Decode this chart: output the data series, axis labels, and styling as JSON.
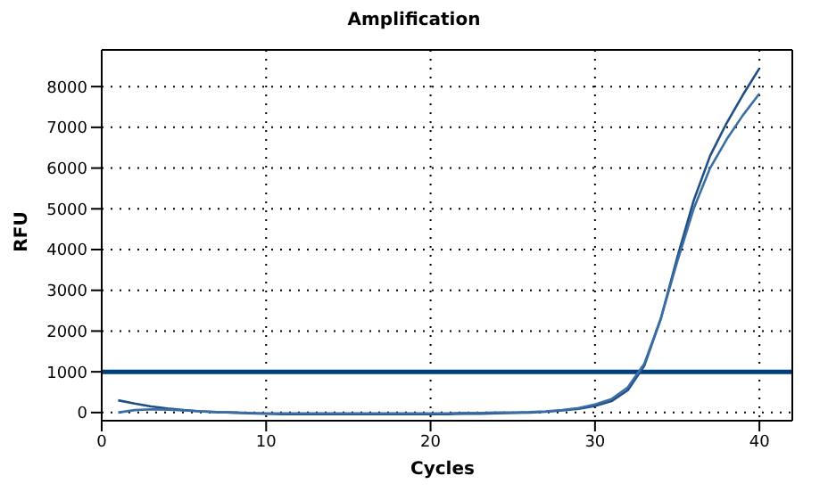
{
  "chart_data": {
    "type": "line",
    "title": "Amplification",
    "xlabel": "Cycles",
    "ylabel": "RFU",
    "x": [
      1,
      2,
      3,
      4,
      5,
      6,
      7,
      8,
      9,
      10,
      11,
      12,
      13,
      14,
      15,
      16,
      17,
      18,
      19,
      20,
      21,
      22,
      23,
      24,
      25,
      26,
      27,
      28,
      29,
      30,
      31,
      32,
      33,
      34,
      35,
      36,
      37,
      38,
      39,
      40
    ],
    "series": [
      {
        "color": "#1f4e86",
        "values": [
          300,
          220,
          150,
          100,
          60,
          30,
          10,
          0,
          -20,
          -30,
          -40,
          -40,
          -40,
          -40,
          -40,
          -40,
          -40,
          -40,
          -40,
          -40,
          -40,
          -30,
          -30,
          -20,
          -10,
          0,
          20,
          50,
          90,
          160,
          280,
          550,
          1150,
          2300,
          3800,
          5200,
          6300,
          7100,
          7800,
          8450
        ]
      },
      {
        "color": "#3a6ea5",
        "values": [
          0,
          60,
          80,
          70,
          50,
          30,
          10,
          0,
          -10,
          -20,
          -20,
          -20,
          -20,
          -20,
          -20,
          -20,
          -20,
          -20,
          -20,
          -20,
          -20,
          -10,
          -10,
          0,
          0,
          10,
          30,
          60,
          110,
          200,
          330,
          620,
          1200,
          2300,
          3700,
          5000,
          6000,
          6700,
          7300,
          7830
        ]
      }
    ],
    "xlim": [
      0,
      42
    ],
    "xticks": [
      0,
      10,
      20,
      30,
      40
    ],
    "ylim": [
      -200,
      8900
    ],
    "yticks": [
      0,
      1000,
      2000,
      3000,
      4000,
      5000,
      6000,
      7000,
      8000
    ],
    "ref_lines": [
      {
        "axis": "y",
        "value": 1000,
        "color": "#003f7f"
      }
    ],
    "grid": true,
    "marker": "none",
    "line_style": "solid",
    "legend": false
  }
}
